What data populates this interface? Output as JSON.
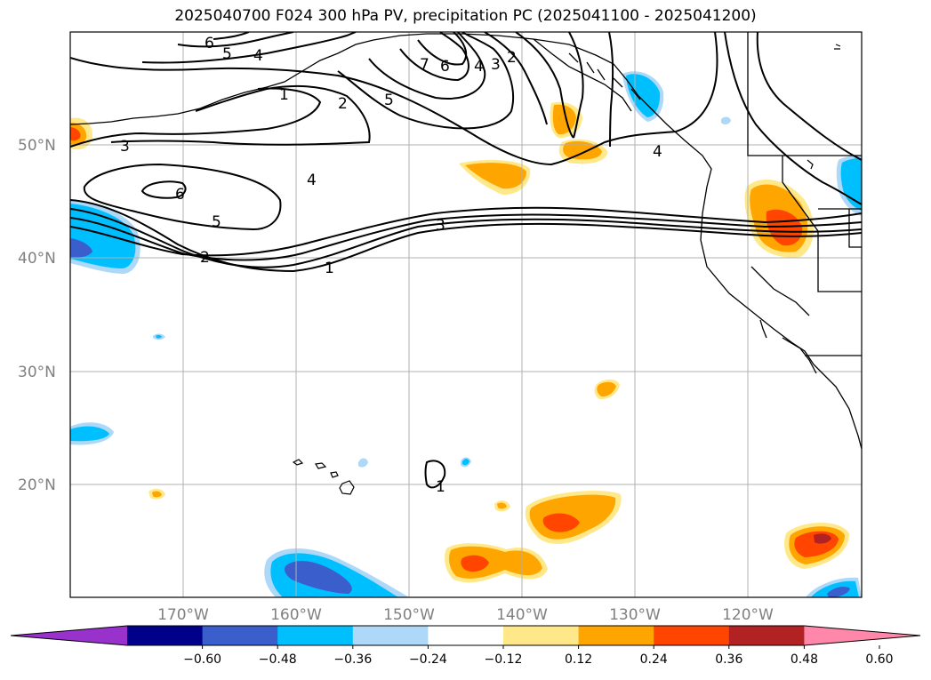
{
  "title": "2025040700 F024 300 hPa PV, precipitation PC (2025041100 - 2025041200)",
  "lat_labels": [
    "50°N",
    "40°N",
    "30°N",
    "20°N"
  ],
  "lon_labels": [
    "170°W",
    "160°W",
    "150°W",
    "140°W",
    "130°W",
    "120°W"
  ],
  "colorbar": {
    "ticks": [
      "−0.60",
      "−0.48",
      "−0.36",
      "−0.24",
      "−0.12",
      "0.12",
      "0.24",
      "0.36",
      "0.48",
      "0.60"
    ],
    "colors": [
      "#9932cc",
      "#00008b",
      "#3a5fcd",
      "#00bfff",
      "#add8f7",
      "#ffffff",
      "#ffe88a",
      "#ffa500",
      "#ff4500",
      "#b22222",
      "#ff88aa"
    ]
  },
  "contour_labels": [
    "6",
    "5",
    "4",
    "1",
    "2",
    "5",
    "7",
    "6",
    "4",
    "3",
    "2",
    "3",
    "6",
    "4",
    "5",
    "3",
    "2",
    "1",
    "4",
    "1"
  ]
}
